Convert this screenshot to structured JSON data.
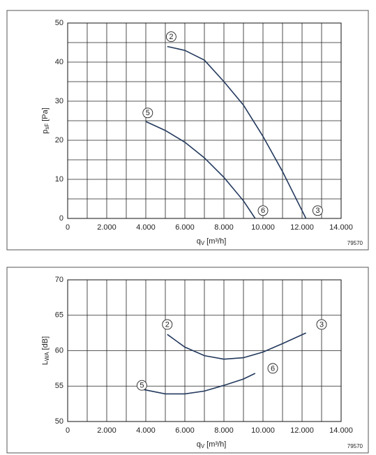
{
  "chart_data": [
    {
      "type": "line",
      "ylabel": {
        "main": "p",
        "sub": "sF",
        "unit": "[Pa]"
      },
      "xlabel": {
        "main": "q",
        "sub": "V",
        "unit": "[m³/h]"
      },
      "note": "79570",
      "xlim": [
        0,
        14000
      ],
      "xticks": [
        0,
        {
          "value": 2000,
          "label": "2.000"
        },
        {
          "value": 4000,
          "label": "4.000"
        },
        {
          "value": 6000,
          "label": "6.000"
        },
        {
          "value": 8000,
          "label": "8.000"
        },
        {
          "value": 10000,
          "label": "10.000"
        },
        {
          "value": 12000,
          "label": "12.000"
        },
        {
          "value": 14000,
          "label": "14.000"
        }
      ],
      "minor_xticks": [
        1000,
        3000,
        5000,
        7000,
        9000,
        11000,
        13000
      ],
      "ylim": [
        0,
        50
      ],
      "yticks": [
        0,
        10,
        20,
        30,
        40,
        50
      ],
      "minor_yticks": [
        5,
        15,
        25,
        35,
        45
      ],
      "grid": true,
      "series": [
        {
          "color": "#23395d",
          "x": [
            5100,
            6000,
            7000,
            8000,
            9000,
            10000,
            11000,
            12000,
            12200
          ],
          "values": [
            44,
            43,
            40.5,
            35,
            29,
            21,
            12,
            2,
            0
          ]
        },
        {
          "color": "#23395d",
          "x": [
            4000,
            5000,
            6000,
            7000,
            8000,
            9000,
            9600
          ],
          "values": [
            24.8,
            22.5,
            19.5,
            15.5,
            10.5,
            4.5,
            0
          ]
        }
      ],
      "annotations": [
        {
          "text": "2",
          "x": 5300,
          "y": 46.5
        },
        {
          "text": "5",
          "x": 4100,
          "y": 27
        },
        {
          "text": "6",
          "x": 10000,
          "y": 2
        },
        {
          "text": "3",
          "x": 12800,
          "y": 2
        }
      ]
    },
    {
      "type": "line",
      "ylabel": {
        "main": "L",
        "sub": "WA",
        "unit": "[dB]"
      },
      "xlabel": {
        "main": "q",
        "sub": "V",
        "unit": "[m³/h]"
      },
      "note": "79570",
      "xlim": [
        0,
        14000
      ],
      "xticks": [
        0,
        {
          "value": 2000,
          "label": "2.000"
        },
        {
          "value": 4000,
          "label": "4.000"
        },
        {
          "value": 6000,
          "label": "6.000"
        },
        {
          "value": 8000,
          "label": "8.000"
        },
        {
          "value": 10000,
          "label": "10.000"
        },
        {
          "value": 12000,
          "label": "12.000"
        },
        {
          "value": 14000,
          "label": "14.000"
        }
      ],
      "minor_xticks": [
        1000,
        3000,
        5000,
        7000,
        9000,
        11000,
        13000
      ],
      "ylim": [
        50,
        70
      ],
      "yticks": [
        50,
        55,
        60,
        65,
        70
      ],
      "minor_yticks": [],
      "grid": true,
      "series": [
        {
          "color": "#23395d",
          "x": [
            5100,
            6000,
            7000,
            8000,
            9000,
            10000,
            11000,
            12200
          ],
          "values": [
            62.3,
            60.5,
            59.3,
            58.8,
            59.0,
            59.8,
            61,
            62.5
          ]
        },
        {
          "color": "#23395d",
          "x": [
            3900,
            5000,
            6000,
            7000,
            8000,
            9000,
            9600
          ],
          "values": [
            54.5,
            53.9,
            53.9,
            54.3,
            55.1,
            56.0,
            56.8
          ]
        }
      ],
      "annotations": [
        {
          "text": "2",
          "x": 5100,
          "y": 63.7
        },
        {
          "text": "3",
          "x": 13000,
          "y": 63.7
        },
        {
          "text": "5",
          "x": 3800,
          "y": 55.1
        },
        {
          "text": "6",
          "x": 10500,
          "y": 57.5
        }
      ]
    }
  ]
}
